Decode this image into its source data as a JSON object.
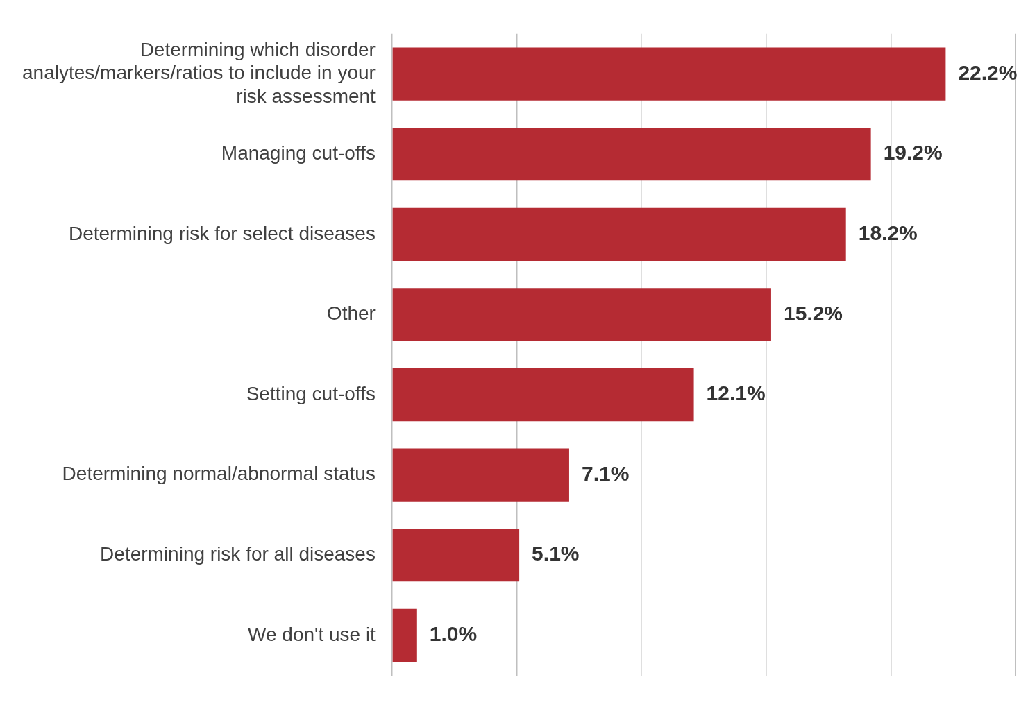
{
  "chart_data": {
    "type": "bar",
    "orientation": "horizontal",
    "categories": [
      "Determining which disorder analytes/markers/ratios to include in your risk assessment",
      "Managing cut-offs",
      "Determining risk for select diseases",
      "Other",
      "Setting cut-offs",
      "Determining normal/abnormal status",
      "Determining risk for all diseases",
      "We don't use it"
    ],
    "values": [
      22.2,
      19.2,
      18.2,
      15.2,
      12.1,
      7.1,
      5.1,
      1.0
    ],
    "value_labels": [
      "22.2%",
      "19.2%",
      "18.2%",
      "15.2%",
      "12.1%",
      "7.1%",
      "5.1%",
      "1.0%"
    ],
    "color": "#b52b33",
    "xlim": [
      0,
      25
    ],
    "xticks": [
      {
        "value": 0,
        "label": null
      },
      {
        "value": 5,
        "label": null
      },
      {
        "value": 10,
        "label": null
      },
      {
        "value": 15,
        "label": null
      },
      {
        "value": 20,
        "label": null
      },
      {
        "value": 25,
        "label": null
      }
    ],
    "grid": "x",
    "legend": false,
    "tick_labels": "y"
  }
}
